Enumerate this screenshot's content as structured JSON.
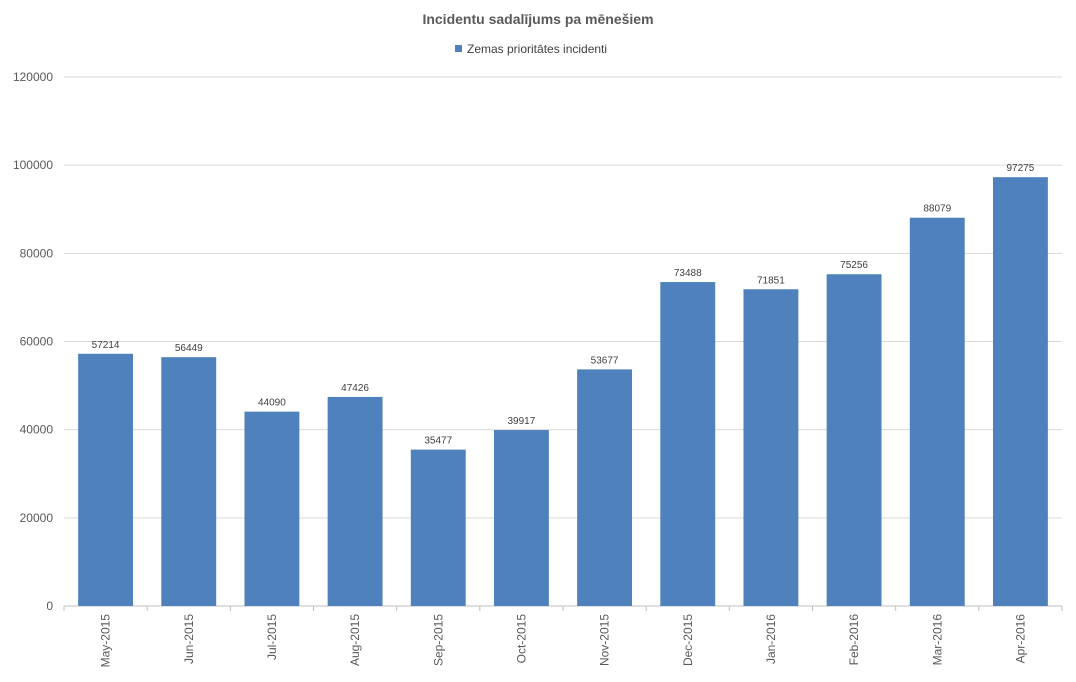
{
  "chart_data": {
    "type": "bar",
    "title": "Incidentu sadalījums pa mēnešiem",
    "categories": [
      "May-2015",
      "Jun-2015",
      "Jul-2015",
      "Aug-2015",
      "Sep-2015",
      "Oct-2015",
      "Nov-2015",
      "Dec-2015",
      "Jan-2016",
      "Feb-2016",
      "Mar-2016",
      "Apr-2016"
    ],
    "series": [
      {
        "name": "Zemas prioritātes incidenti",
        "color": "#4f81bd",
        "values": [
          57214,
          56449,
          44090,
          47426,
          35477,
          39917,
          53677,
          73488,
          71851,
          75256,
          88079,
          97275
        ]
      }
    ],
    "ylim": [
      0,
      120000
    ],
    "yticks": [
      "0",
      "20000",
      "40000",
      "60000",
      "80000",
      "100000",
      "120000"
    ],
    "xlabel": "",
    "ylabel": "",
    "grid": true,
    "legend_position": "top"
  }
}
